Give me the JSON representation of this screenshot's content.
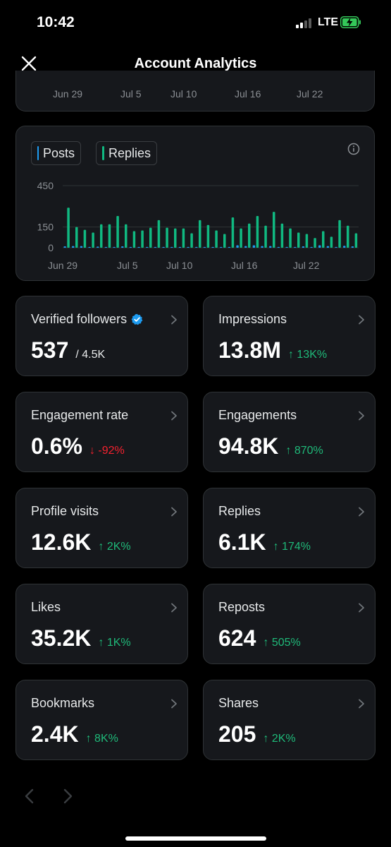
{
  "status_bar": {
    "time": "10:42",
    "network": "LTE"
  },
  "header": {
    "title": "Account Analytics"
  },
  "top_chart": {
    "x_labels": [
      "Jun 29",
      "Jul 5",
      "Jul 10",
      "Jul 16",
      "Jul 22"
    ]
  },
  "chart_data": {
    "type": "bar",
    "legend": [
      "Posts",
      "Replies"
    ],
    "y_ticks": [
      "450",
      "150",
      "0"
    ],
    "x_ticks": [
      "Jun 29",
      "Jul 5",
      "Jul 10",
      "Jul 16",
      "Jul 22"
    ],
    "ylim": [
      0,
      450
    ],
    "series": [
      {
        "name": "Posts",
        "color": "#1d9bf0",
        "values": [
          10,
          12,
          12,
          6,
          8,
          6,
          6,
          10,
          6,
          6,
          6,
          6,
          6,
          6,
          6,
          6,
          6,
          6,
          6,
          6,
          6,
          18,
          12,
          18,
          12,
          12,
          6,
          6,
          6,
          10,
          6,
          18,
          12,
          6,
          14,
          10
        ]
      },
      {
        "name": "Replies",
        "color": "#10b981",
        "values": [
          290,
          150,
          130,
          110,
          170,
          170,
          230,
          170,
          120,
          125,
          145,
          200,
          145,
          140,
          140,
          105,
          200,
          165,
          125,
          100,
          220,
          140,
          175,
          230,
          160,
          260,
          175,
          140,
          110,
          100,
          70,
          120,
          80,
          200,
          160,
          105
        ]
      }
    ]
  },
  "stats": [
    {
      "label": "Verified followers",
      "value": "537",
      "sub": "/ 4.5K",
      "verified": true
    },
    {
      "label": "Impressions",
      "value": "13.8M",
      "change": "13K%",
      "dir": "up"
    },
    {
      "label": "Engagement rate",
      "value": "0.6%",
      "change": "-92%",
      "dir": "down"
    },
    {
      "label": "Engagements",
      "value": "94.8K",
      "change": "870%",
      "dir": "up"
    },
    {
      "label": "Profile visits",
      "value": "12.6K",
      "change": "2K%",
      "dir": "up"
    },
    {
      "label": "Replies",
      "value": "6.1K",
      "change": "174%",
      "dir": "up"
    },
    {
      "label": "Likes",
      "value": "35.2K",
      "change": "1K%",
      "dir": "up"
    },
    {
      "label": "Reposts",
      "value": "624",
      "change": "505%",
      "dir": "up"
    },
    {
      "label": "Bookmarks",
      "value": "2.4K",
      "change": "8K%",
      "dir": "up"
    },
    {
      "label": "Shares",
      "value": "205",
      "change": "2K%",
      "dir": "up"
    }
  ],
  "colors": {
    "up": "#1fb979",
    "down": "#f4212e",
    "verified": "#1d9bf0",
    "battery": "#34c759"
  }
}
